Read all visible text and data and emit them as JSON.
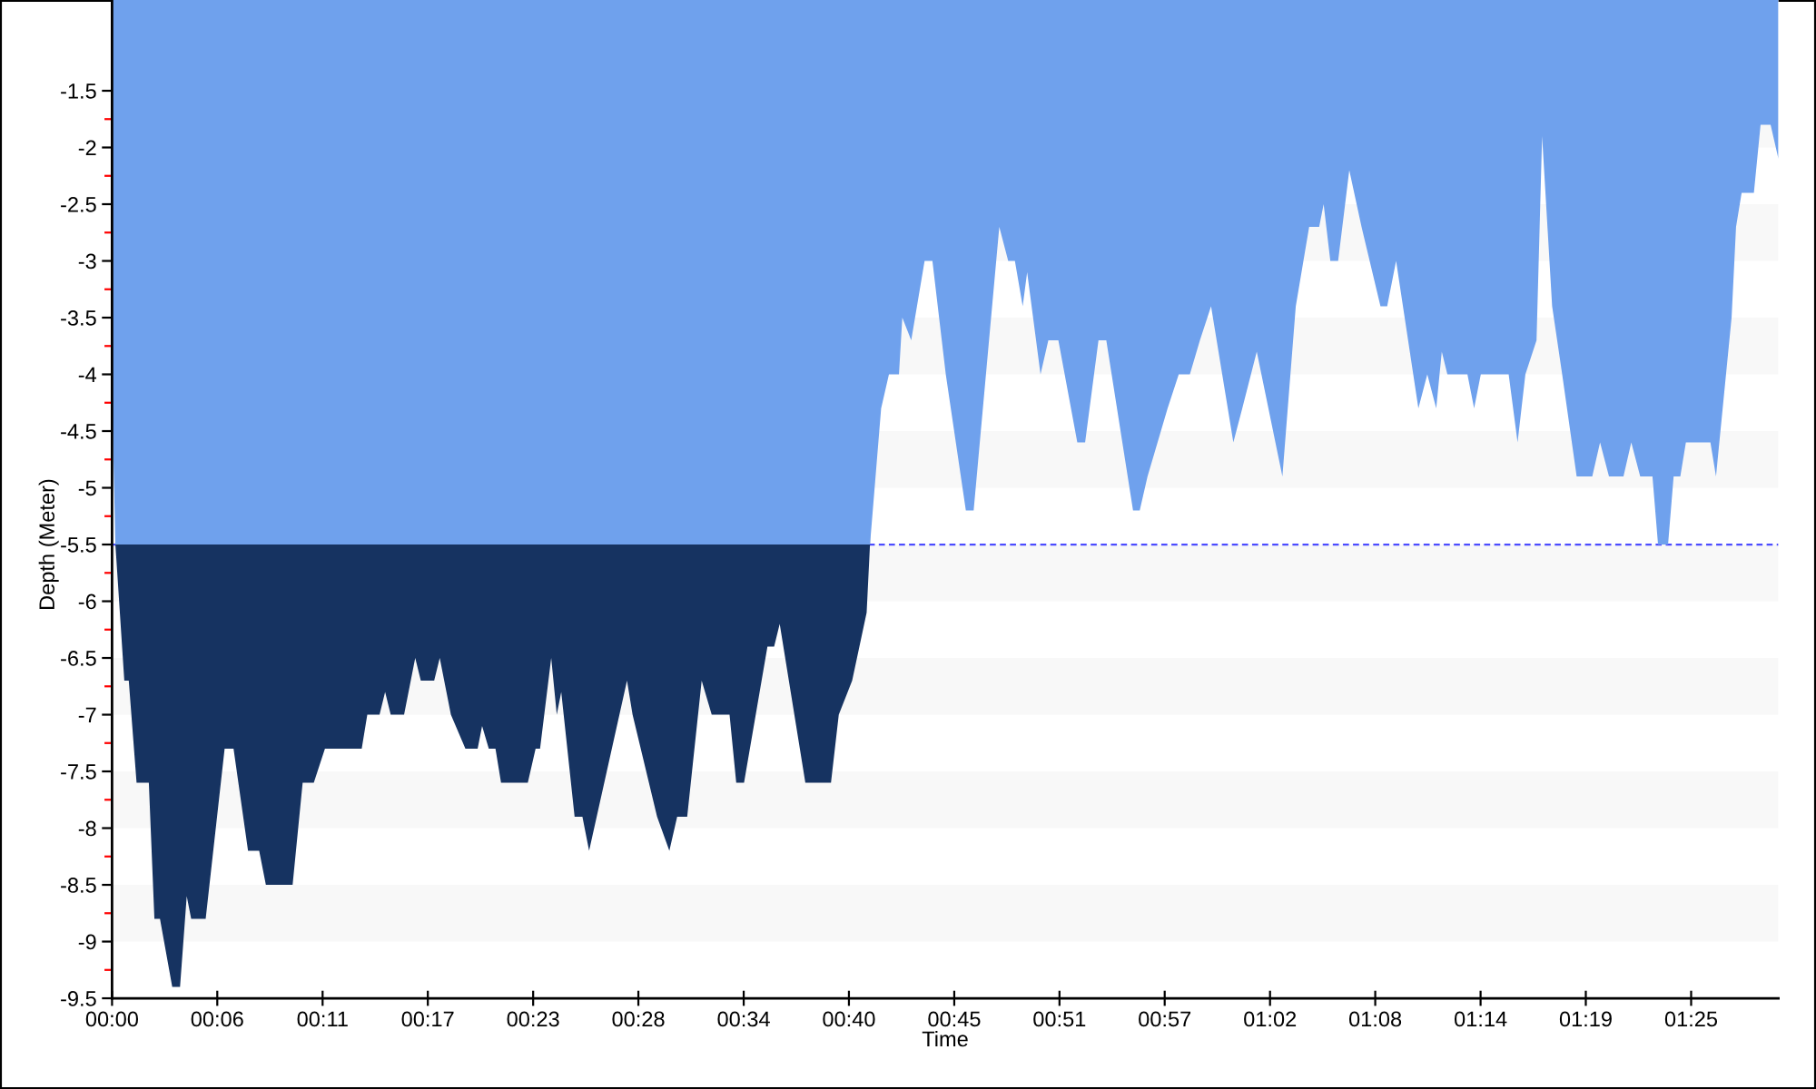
{
  "chart_data": {
    "type": "area",
    "xlabel": "Time",
    "ylabel": "Depth (Meter)",
    "x": [
      0.0,
      0.003,
      0.011,
      0.015,
      0.022,
      0.033,
      0.038,
      0.043,
      0.054,
      0.061,
      0.067,
      0.071,
      0.084,
      0.101,
      0.109,
      0.122,
      0.132,
      0.138,
      0.162,
      0.171,
      0.181,
      0.191,
      0.224,
      0.229,
      0.24,
      0.245,
      0.25,
      0.262,
      0.272,
      0.277,
      0.289,
      0.294,
      0.304,
      0.317,
      0.328,
      0.332,
      0.338,
      0.344,
      0.349,
      0.373,
      0.38,
      0.384,
      0.394,
      0.399,
      0.403,
      0.415,
      0.422,
      0.428,
      0.462,
      0.467,
      0.489,
      0.5,
      0.507,
      0.516,
      0.529,
      0.538,
      0.554,
      0.56,
      0.567,
      0.588,
      0.594,
      0.599,
      0.622,
      0.645,
      0.652,
      0.664,
      0.677,
      0.68,
      0.69,
      0.697,
      0.706,
      0.709,
      0.717,
      0.729,
      0.736,
      0.748,
      0.766,
      0.773,
      0.796,
      0.804,
      0.81,
      0.817,
      0.821,
      0.833,
      0.84,
      0.849,
      0.866,
      0.873,
      0.885,
      0.892,
      0.916,
      0.922,
      0.929,
      0.947,
      0.957,
      0.967,
      0.976,
      0.986,
      1.006,
      1.014,
      1.027,
      1.05,
      1.062,
      1.074,
      1.083,
      1.087,
      1.093,
      1.1,
      1.11,
      1.121,
      1.138,
      1.144,
      1.152,
      1.172,
      1.18,
      1.188,
      1.193,
      1.198,
      1.216,
      1.222,
      1.228,
      1.253,
      1.261,
      1.268,
      1.278,
      1.283,
      1.292,
      1.301,
      1.314,
      1.328,
      1.335,
      1.343,
      1.356,
      1.363,
      1.371,
      1.382,
      1.387,
      1.396,
      1.401,
      1.407,
      1.412,
      1.434,
      1.439,
      1.453,
      1.457,
      1.462,
      1.473,
      1.479,
      1.488,
      1.495
    ],
    "series": [
      {
        "color": "#163361",
        "x": [
          0.003,
          0.011,
          0.015,
          0.022,
          0.033,
          0.038,
          0.043,
          0.054,
          0.061,
          0.067,
          0.071,
          0.084,
          0.101,
          0.109,
          0.122,
          0.132,
          0.138,
          0.162,
          0.171,
          0.181,
          0.191,
          0.224,
          0.229,
          0.24,
          0.245,
          0.25,
          0.262,
          0.272,
          0.277,
          0.289,
          0.294,
          0.304,
          0.317,
          0.328,
          0.332,
          0.338,
          0.344,
          0.349,
          0.373,
          0.38,
          0.384,
          0.394,
          0.399,
          0.403,
          0.415,
          0.422,
          0.428,
          0.462,
          0.467,
          0.489,
          0.5,
          0.507,
          0.516,
          0.529,
          0.538,
          0.554,
          0.56,
          0.567,
          0.588,
          0.594,
          0.599,
          0.622,
          0.645,
          0.652,
          0.664,
          0.677,
          0.68
        ],
        "values": [
          -5.5,
          -6.7,
          -6.7,
          -7.6,
          -7.6,
          -8.8,
          -8.8,
          -9.4,
          -9.4,
          -8.6,
          -8.8,
          -8.8,
          -7.3,
          -7.3,
          -8.2,
          -8.2,
          -8.5,
          -8.5,
          -7.6,
          -7.6,
          -7.3,
          -7.3,
          -7.0,
          -7.0,
          -6.8,
          -7.0,
          -7.0,
          -6.5,
          -6.7,
          -6.7,
          -6.5,
          -7.0,
          -7.3,
          -7.3,
          -7.1,
          -7.3,
          -7.3,
          -7.6,
          -7.6,
          -7.3,
          -7.3,
          -6.5,
          -7.0,
          -6.8,
          -7.9,
          -7.9,
          -8.2,
          -6.7,
          -7.0,
          -7.9,
          -8.2,
          -7.9,
          -7.9,
          -6.7,
          -7.0,
          -7.0,
          -7.6,
          -7.6,
          -6.4,
          -6.4,
          -6.2,
          -7.6,
          -7.6,
          -7.0,
          -6.7,
          -6.1,
          -5.5
        ]
      },
      {
        "color": "#6fa1ed",
        "values": [
          -4.2,
          -5.5,
          null,
          null,
          null,
          null,
          null,
          null,
          null,
          null,
          null,
          null,
          null,
          null,
          null,
          null,
          null,
          null,
          null,
          null,
          null,
          null,
          null,
          null,
          null,
          null,
          null,
          null,
          null,
          null,
          null,
          null,
          null,
          null,
          null,
          null,
          null,
          null,
          null,
          null,
          null,
          null,
          null,
          null,
          null,
          null,
          null,
          null,
          null,
          null,
          null,
          null,
          null,
          null,
          null,
          null,
          null,
          null,
          null,
          null,
          null,
          null,
          null,
          null,
          null,
          null,
          null,
          -5.5,
          -4.3,
          -4.0,
          -4.0,
          -3.5,
          -3.7,
          -3.0,
          -3.0,
          -4.0,
          -5.2,
          -5.2,
          -2.7,
          -3.0,
          -3.0,
          -3.4,
          -3.1,
          -4.0,
          -3.7,
          -3.7,
          -4.6,
          -4.6,
          -3.7,
          -3.7,
          -5.2,
          -5.2,
          -4.9,
          -4.3,
          -4.0,
          -4.0,
          -3.7,
          -3.4,
          -4.6,
          -4.3,
          -3.8,
          -4.9,
          -3.4,
          -2.7,
          -2.7,
          -2.5,
          -3.0,
          -3.0,
          -2.2,
          -2.7,
          -3.4,
          -3.4,
          -3.0,
          -4.3,
          -4.0,
          -4.3,
          -3.8,
          -4.0,
          -4.0,
          -4.3,
          -4.0,
          -4.0,
          -4.6,
          -4.0,
          -3.7,
          -1.9,
          -3.4,
          -4.0,
          -4.9,
          -4.9,
          -4.6,
          -4.9,
          -4.9,
          -4.6,
          -4.9,
          -4.9,
          -5.5,
          -5.5,
          -4.9,
          -4.9,
          -4.6,
          -4.6,
          -4.9,
          -3.5,
          -2.7,
          -2.4,
          -2.4,
          -1.8,
          -1.8,
          -2.1
        ]
      }
    ],
    "xlim": [
      0,
      1.495
    ],
    "xticks": [
      {
        "value": 0,
        "label": "00:00"
      },
      {
        "value": 0.0944,
        "label": "00:06"
      },
      {
        "value": 0.1889,
        "label": "00:11"
      },
      {
        "value": 0.2833,
        "label": "00:17"
      },
      {
        "value": 0.3778,
        "label": "00:23"
      },
      {
        "value": 0.4722,
        "label": "00:28"
      },
      {
        "value": 0.5667,
        "label": "00:34"
      },
      {
        "value": 0.6611,
        "label": "00:40"
      },
      {
        "value": 0.7556,
        "label": "00:45"
      },
      {
        "value": 0.85,
        "label": "00:51"
      },
      {
        "value": 0.9444,
        "label": "00:57"
      },
      {
        "value": 1.0389,
        "label": "01:02"
      },
      {
        "value": 1.1333,
        "label": "01:08"
      },
      {
        "value": 1.2278,
        "label": "01:14"
      },
      {
        "value": 1.3222,
        "label": "01:19"
      },
      {
        "value": 1.4167,
        "label": "01:25"
      }
    ],
    "ylim": [
      -9.5,
      -0.7
    ],
    "yticks": [
      -9.5,
      -9,
      -8.5,
      -8,
      -7.5,
      -7,
      -6.5,
      -6,
      -5.5,
      -5,
      -4.5,
      -4,
      -3.5,
      -3,
      -2.5,
      -2,
      -1.5
    ],
    "ref_lines": [
      {
        "axis": "y",
        "value": -5.5,
        "color": "#4c4cff",
        "line_style": "dashed"
      }
    ],
    "bands": [
      {
        "axis": "y",
        "from": -9,
        "to": -8.5,
        "color": "#f8f8f8"
      },
      {
        "axis": "y",
        "from": -8,
        "to": -7.5,
        "color": "#f8f8f8"
      },
      {
        "axis": "y",
        "from": -7,
        "to": -6.5,
        "color": "#f8f8f8"
      },
      {
        "axis": "y",
        "from": -6,
        "to": -5.5,
        "color": "#f8f8f8"
      },
      {
        "axis": "y",
        "from": -5,
        "to": -4.5,
        "color": "#f8f8f8"
      },
      {
        "axis": "y",
        "from": -4,
        "to": -3.5,
        "color": "#f8f8f8"
      },
      {
        "axis": "y",
        "from": -3,
        "to": -2.5,
        "color": "#f8f8f8"
      },
      {
        "axis": "y",
        "from": -2,
        "to": -1.5,
        "color": "#f8f8f8"
      }
    ],
    "legend": false,
    "grid": false
  }
}
